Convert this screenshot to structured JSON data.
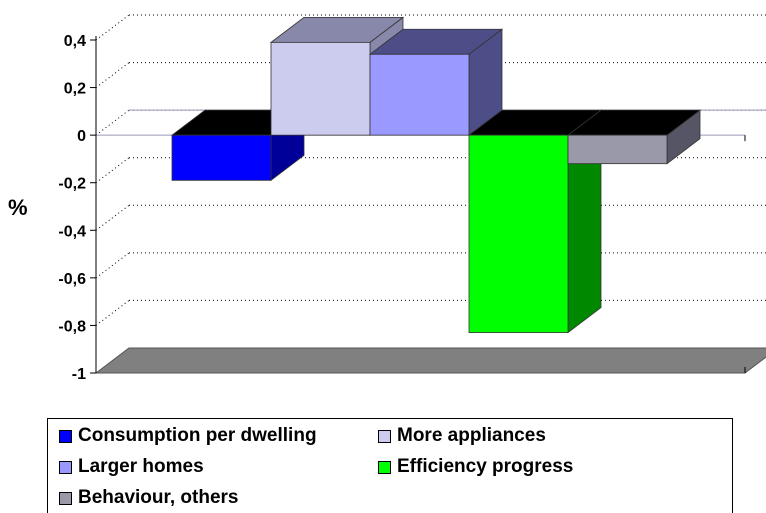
{
  "chart_data": {
    "type": "bar",
    "categories": [
      ""
    ],
    "series": [
      {
        "name": "Consumption per dwelling",
        "values": [
          -0.19
        ],
        "color": "#0000FF",
        "side": "#000099"
      },
      {
        "name": "More appliances",
        "values": [
          0.39
        ],
        "color": "#CCCCEE",
        "side": "#8888AA"
      },
      {
        "name": "Larger homes",
        "values": [
          0.34
        ],
        "color": "#9999FF",
        "side": "#4D4D88"
      },
      {
        "name": "Efficiency progress",
        "values": [
          -0.83
        ],
        "color": "#00FF00",
        "side": "#008800"
      },
      {
        "name": "Behaviour, others",
        "values": [
          -0.12
        ],
        "color": "#9999AA",
        "side": "#555566"
      }
    ],
    "ylim": [
      -1,
      0.4
    ],
    "yticks": [
      "0,4",
      "0,2",
      "0",
      "-0,2",
      "-0,4",
      "-0,6",
      "-0,8",
      "-1"
    ],
    "ylabel": "%",
    "xlabel": "",
    "title": "",
    "grid": true,
    "legend_position": "bottom"
  },
  "colors": {
    "floor": "#808080",
    "top_cap": "#000000"
  }
}
